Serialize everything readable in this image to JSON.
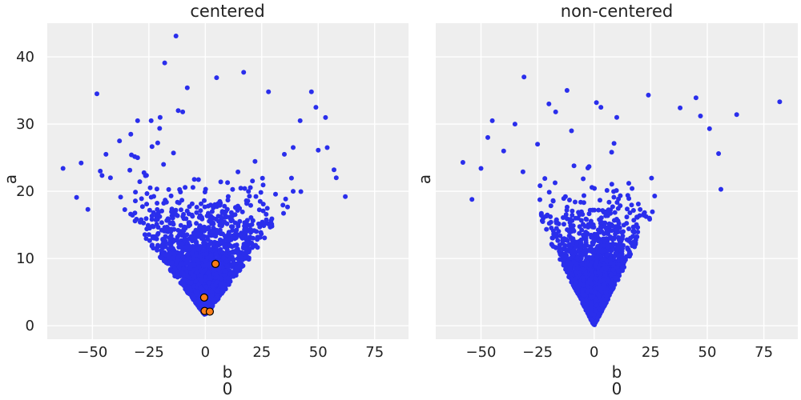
{
  "colors": {
    "background": "#ffffff",
    "axes_facecolor": "#eeeeee",
    "grid": "#ffffff",
    "sample_points": "#2a2eec",
    "divergence_points": "#fa7c17",
    "divergence_edge": "#000000",
    "text": "#222222"
  },
  "chart_data": [
    {
      "type": "scatter",
      "title": "centered",
      "xlabel": "b",
      "xlabel_index": "0",
      "ylabel": "a",
      "xlim": [
        -70,
        90
      ],
      "ylim": [
        -2,
        45
      ],
      "xticks": [
        -50,
        -25,
        0,
        25,
        50,
        75
      ],
      "xtick_labels": [
        "−50",
        "−25",
        "0",
        "25",
        "50",
        "75"
      ],
      "yticks": [
        0,
        10,
        20,
        30,
        40
      ],
      "ytick_labels": [
        "0",
        "10",
        "20",
        "30",
        "40"
      ],
      "grid": true,
      "series": [
        {
          "role": "samples",
          "marker": "circle",
          "color": "#2a2eec",
          "approx_count": 2000,
          "approx_shape": "funnel: a ≈ 1.5 + |b|/2.3 lower bound, dense core for a < 17",
          "outliers": [
            [
              -13,
              43.1
            ],
            [
              -18,
              39.1
            ],
            [
              -8,
              35.4
            ],
            [
              5,
              36.9
            ],
            [
              17,
              37.7
            ],
            [
              -48,
              34.5
            ],
            [
              28,
              34.8
            ],
            [
              47,
              34.8
            ],
            [
              49,
              32.5
            ],
            [
              -12,
              32
            ],
            [
              -10,
              31.8
            ],
            [
              -20,
              31
            ],
            [
              -24,
              30.5
            ],
            [
              -30,
              30.5
            ],
            [
              -33,
              28.5
            ],
            [
              -44,
              25.5
            ],
            [
              -55,
              24.2
            ],
            [
              -63,
              23.4
            ],
            [
              -57,
              19.1
            ],
            [
              -52,
              17.3
            ],
            [
              62,
              19.2
            ],
            [
              57,
              23.2
            ],
            [
              54,
              26.5
            ],
            [
              50,
              26.1
            ],
            [
              58,
              22
            ],
            [
              -38,
              27.5
            ],
            [
              35,
              25.5
            ],
            [
              42,
              30.5
            ],
            [
              -42,
              22
            ],
            [
              -30,
              25
            ]
          ]
        },
        {
          "role": "divergences",
          "marker": "circle",
          "color": "#fa7c17",
          "points": [
            [
              4.5,
              9.2
            ],
            [
              -0.5,
              4.2
            ],
            [
              -0.3,
              2.2
            ],
            [
              2.0,
              2.1
            ]
          ]
        }
      ]
    },
    {
      "type": "scatter",
      "title": "non-centered",
      "xlabel": "b",
      "xlabel_index": "0",
      "ylabel": "a",
      "xlim": [
        -70,
        90
      ],
      "ylim": [
        -2,
        45
      ],
      "xticks": [
        -50,
        -25,
        0,
        25,
        50,
        75
      ],
      "xtick_labels": [
        "−50",
        "−25",
        "0",
        "25",
        "50",
        "75"
      ],
      "yticks": [
        0,
        10,
        20,
        30,
        40
      ],
      "grid": true,
      "series": [
        {
          "role": "samples",
          "marker": "circle",
          "color": "#2a2eec",
          "approx_count": 2000,
          "approx_shape": "funnel reaching a ≈ 0 at b ≈ 0, dense core for a < 15",
          "outliers": [
            [
              -31,
              37
            ],
            [
              -12,
              35
            ],
            [
              1,
              33.2
            ],
            [
              3,
              32.5
            ],
            [
              82,
              33.3
            ],
            [
              45,
              33.9
            ],
            [
              47,
              31.2
            ],
            [
              63,
              31.4
            ],
            [
              51,
              29.3
            ],
            [
              -20,
              33
            ],
            [
              -17,
              31.8
            ],
            [
              -35,
              30
            ],
            [
              -45,
              30.5
            ],
            [
              -58,
              24.3
            ],
            [
              -54,
              18.8
            ],
            [
              -50,
              23.4
            ],
            [
              -47,
              28
            ],
            [
              55,
              25.6
            ],
            [
              56,
              20.3
            ],
            [
              24,
              34.3
            ],
            [
              38,
              32.4
            ],
            [
              -25,
              27
            ],
            [
              -40,
              26
            ],
            [
              -10,
              29
            ],
            [
              10,
              31
            ]
          ]
        }
      ]
    }
  ]
}
